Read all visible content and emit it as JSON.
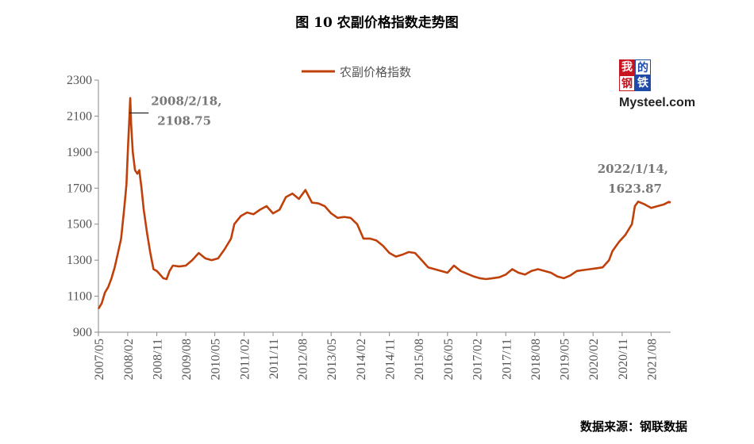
{
  "title": "图 10 农副价格指数走势图",
  "source": "数据来源：钢联数据",
  "logo": {
    "cn_top": "我的",
    "cn_bottom": "钢铁",
    "brand": "Mysteel.com"
  },
  "chart_data": {
    "type": "line",
    "title": "图 10 农副价格指数走势图",
    "ylim": [
      900,
      2300
    ],
    "yticks": [
      900,
      1100,
      1300,
      1500,
      1700,
      1900,
      2100,
      2300
    ],
    "xlim": [
      "2007-05",
      "2022-02"
    ],
    "xticks": [
      "2007/05",
      "2008/02",
      "2008/11",
      "2009/08",
      "2010/05",
      "2011/02",
      "2011/11",
      "2012/08",
      "2013/05",
      "2014/02",
      "2014/11",
      "2015/08",
      "2016/05",
      "2017/02",
      "2017/11",
      "2018/08",
      "2019/05",
      "2020/02",
      "2020/11",
      "2021/08"
    ],
    "grid": false,
    "legend": "top-center",
    "color": "#c0400a",
    "series": [
      {
        "name": "农副价格指数",
        "points": [
          [
            "2007-05-01",
            1030
          ],
          [
            "2007-06-01",
            1060
          ],
          [
            "2007-07-01",
            1120
          ],
          [
            "2007-08-01",
            1150
          ],
          [
            "2007-09-01",
            1200
          ],
          [
            "2007-10-01",
            1260
          ],
          [
            "2007-11-01",
            1340
          ],
          [
            "2007-12-01",
            1420
          ],
          [
            "2008-01-01",
            1600
          ],
          [
            "2008-01-20",
            1720
          ],
          [
            "2008-02-05",
            1950
          ],
          [
            "2008-02-18",
            2108.75
          ],
          [
            "2008-02-25",
            2200
          ],
          [
            "2008-03-05",
            2050
          ],
          [
            "2008-03-20",
            1900
          ],
          [
            "2008-04-10",
            1800
          ],
          [
            "2008-05-01",
            1780
          ],
          [
            "2008-05-20",
            1800
          ],
          [
            "2008-06-10",
            1700
          ],
          [
            "2008-07-01",
            1580
          ],
          [
            "2008-08-01",
            1450
          ],
          [
            "2008-09-01",
            1340
          ],
          [
            "2008-10-01",
            1250
          ],
          [
            "2008-11-01",
            1240
          ],
          [
            "2008-12-01",
            1220
          ],
          [
            "2009-01-01",
            1200
          ],
          [
            "2009-02-01",
            1195
          ],
          [
            "2009-03-01",
            1240
          ],
          [
            "2009-04-01",
            1270
          ],
          [
            "2009-06-01",
            1265
          ],
          [
            "2009-08-01",
            1270
          ],
          [
            "2009-10-01",
            1300
          ],
          [
            "2009-12-01",
            1340
          ],
          [
            "2010-02-01",
            1310
          ],
          [
            "2010-04-01",
            1300
          ],
          [
            "2010-06-01",
            1310
          ],
          [
            "2010-08-01",
            1360
          ],
          [
            "2010-10-01",
            1420
          ],
          [
            "2010-11-01",
            1500
          ],
          [
            "2011-01-01",
            1545
          ],
          [
            "2011-03-01",
            1565
          ],
          [
            "2011-05-01",
            1555
          ],
          [
            "2011-07-01",
            1580
          ],
          [
            "2011-09-01",
            1600
          ],
          [
            "2011-11-01",
            1560
          ],
          [
            "2012-01-01",
            1580
          ],
          [
            "2012-03-01",
            1650
          ],
          [
            "2012-05-01",
            1670
          ],
          [
            "2012-07-01",
            1640
          ],
          [
            "2012-09-01",
            1690
          ],
          [
            "2012-11-01",
            1620
          ],
          [
            "2013-01-01",
            1615
          ],
          [
            "2013-03-01",
            1600
          ],
          [
            "2013-05-01",
            1560
          ],
          [
            "2013-07-01",
            1535
          ],
          [
            "2013-09-01",
            1540
          ],
          [
            "2013-11-01",
            1535
          ],
          [
            "2014-01-01",
            1500
          ],
          [
            "2014-03-01",
            1420
          ],
          [
            "2014-05-01",
            1420
          ],
          [
            "2014-07-01",
            1410
          ],
          [
            "2014-09-01",
            1380
          ],
          [
            "2014-11-01",
            1340
          ],
          [
            "2015-01-01",
            1320
          ],
          [
            "2015-03-01",
            1330
          ],
          [
            "2015-05-01",
            1345
          ],
          [
            "2015-07-01",
            1340
          ],
          [
            "2015-09-01",
            1300
          ],
          [
            "2015-11-01",
            1260
          ],
          [
            "2016-01-01",
            1250
          ],
          [
            "2016-03-01",
            1240
          ],
          [
            "2016-05-01",
            1230
          ],
          [
            "2016-07-01",
            1270
          ],
          [
            "2016-09-01",
            1240
          ],
          [
            "2016-11-01",
            1225
          ],
          [
            "2017-01-01",
            1210
          ],
          [
            "2017-03-01",
            1200
          ],
          [
            "2017-05-01",
            1195
          ],
          [
            "2017-07-01",
            1200
          ],
          [
            "2017-09-01",
            1205
          ],
          [
            "2017-11-01",
            1220
          ],
          [
            "2018-01-01",
            1250
          ],
          [
            "2018-03-01",
            1230
          ],
          [
            "2018-05-01",
            1220
          ],
          [
            "2018-07-01",
            1240
          ],
          [
            "2018-09-01",
            1250
          ],
          [
            "2018-11-01",
            1240
          ],
          [
            "2019-01-01",
            1230
          ],
          [
            "2019-03-01",
            1210
          ],
          [
            "2019-05-01",
            1200
          ],
          [
            "2019-07-01",
            1215
          ],
          [
            "2019-09-01",
            1240
          ],
          [
            "2019-11-01",
            1245
          ],
          [
            "2020-01-01",
            1250
          ],
          [
            "2020-03-01",
            1255
          ],
          [
            "2020-05-01",
            1260
          ],
          [
            "2020-07-01",
            1300
          ],
          [
            "2020-08-01",
            1350
          ],
          [
            "2020-10-01",
            1400
          ],
          [
            "2020-12-01",
            1440
          ],
          [
            "2021-02-01",
            1500
          ],
          [
            "2021-03-01",
            1600
          ],
          [
            "2021-04-01",
            1625
          ],
          [
            "2021-06-01",
            1610
          ],
          [
            "2021-08-01",
            1590
          ],
          [
            "2021-10-01",
            1600
          ],
          [
            "2021-12-01",
            1610
          ],
          [
            "2022-01-14",
            1623.87
          ],
          [
            "2022-02-01",
            1620
          ]
        ]
      }
    ],
    "annotations": [
      {
        "label_line1": "2008/2/18,",
        "label_line2": "2108.75",
        "x": "2008-02-18",
        "y": 2108.75
      },
      {
        "label_line1": "2022/1/14,",
        "label_line2": "1623.87",
        "x": "2022-01-14",
        "y": 1623.87
      }
    ]
  }
}
